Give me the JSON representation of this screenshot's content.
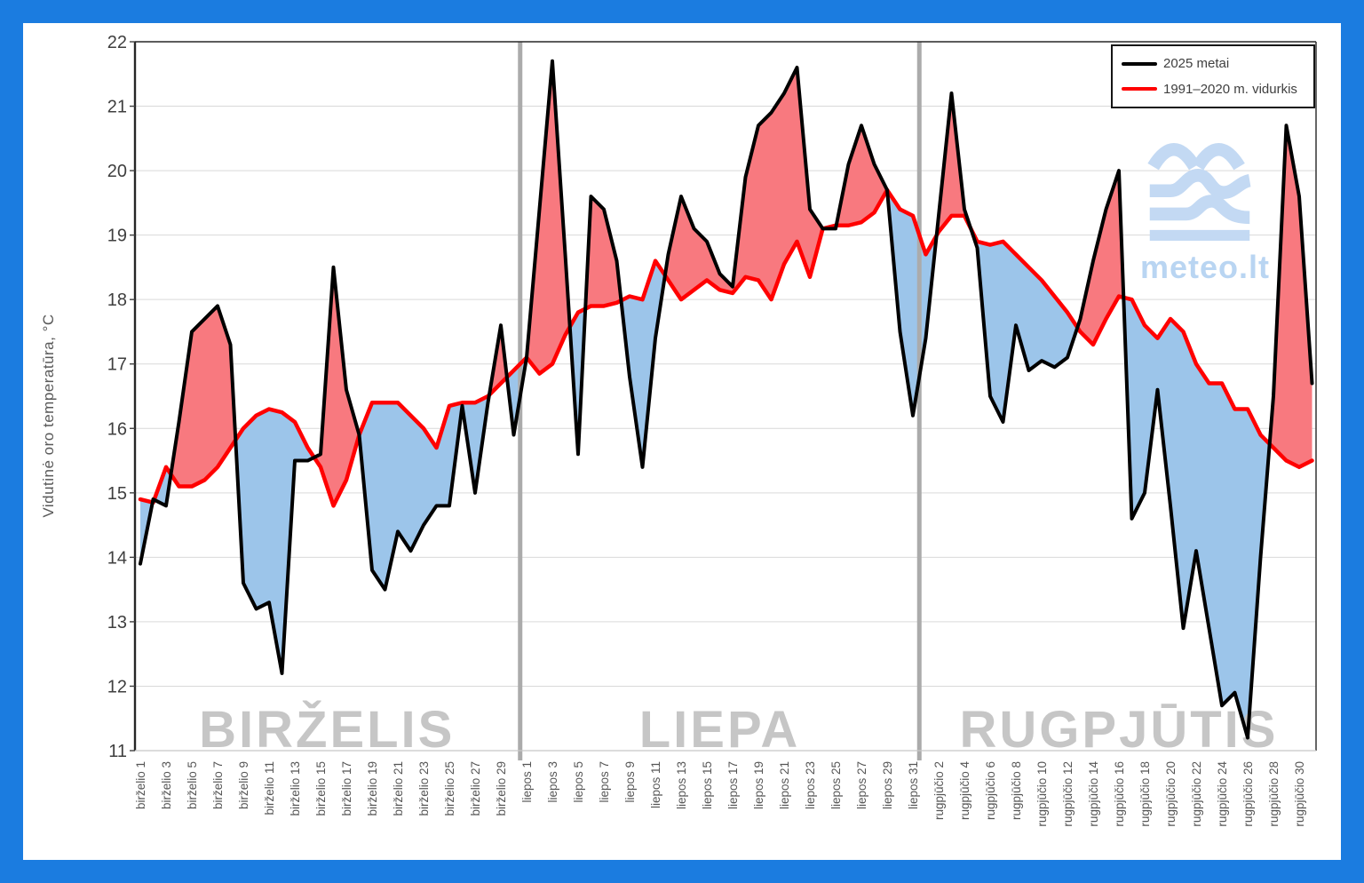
{
  "legend": {
    "items": [
      {
        "label": "2025 metai",
        "color": "#000000"
      },
      {
        "label": "1991–2020 m. vidurkis",
        "color": "#ff0000"
      }
    ]
  },
  "logo": {
    "text": "meteo.lt"
  },
  "months": [
    {
      "label": "BIRŽELIS",
      "start": 0,
      "end": 29
    },
    {
      "label": "LIEPA",
      "start": 30,
      "end": 60
    },
    {
      "label": "RUGPJŪTIS",
      "start": 61,
      "end": 91
    }
  ],
  "x_axis": {
    "ticks": [
      {
        "i": 0,
        "label": "birželio 1"
      },
      {
        "i": 2,
        "label": "birželio 3"
      },
      {
        "i": 4,
        "label": "birželio 5"
      },
      {
        "i": 6,
        "label": "birželio 7"
      },
      {
        "i": 8,
        "label": "birželio 9"
      },
      {
        "i": 10,
        "label": "birželio 11"
      },
      {
        "i": 12,
        "label": "birželio 13"
      },
      {
        "i": 14,
        "label": "birželio 15"
      },
      {
        "i": 16,
        "label": "birželio 17"
      },
      {
        "i": 18,
        "label": "birželio 19"
      },
      {
        "i": 20,
        "label": "birželio 21"
      },
      {
        "i": 22,
        "label": "birželio 23"
      },
      {
        "i": 24,
        "label": "birželio 25"
      },
      {
        "i": 26,
        "label": "birželio 27"
      },
      {
        "i": 28,
        "label": "birželio 29"
      },
      {
        "i": 30,
        "label": "liepos 1"
      },
      {
        "i": 32,
        "label": "liepos 3"
      },
      {
        "i": 34,
        "label": "liepos 5"
      },
      {
        "i": 36,
        "label": "liepos 7"
      },
      {
        "i": 38,
        "label": "liepos 9"
      },
      {
        "i": 40,
        "label": "liepos 11"
      },
      {
        "i": 42,
        "label": "liepos 13"
      },
      {
        "i": 44,
        "label": "liepos 15"
      },
      {
        "i": 46,
        "label": "liepos 17"
      },
      {
        "i": 48,
        "label": "liepos 19"
      },
      {
        "i": 50,
        "label": "liepos 21"
      },
      {
        "i": 52,
        "label": "liepos 23"
      },
      {
        "i": 54,
        "label": "liepos 25"
      },
      {
        "i": 56,
        "label": "liepos 27"
      },
      {
        "i": 58,
        "label": "liepos 29"
      },
      {
        "i": 60,
        "label": "liepos 31"
      },
      {
        "i": 62,
        "label": "rugpjūčio 2"
      },
      {
        "i": 64,
        "label": "rugpjūčio 4"
      },
      {
        "i": 66,
        "label": "rugpjūčio 6"
      },
      {
        "i": 68,
        "label": "rugpjūčio 8"
      },
      {
        "i": 70,
        "label": "rugpjūčio 10"
      },
      {
        "i": 72,
        "label": "rugpjūčio 12"
      },
      {
        "i": 74,
        "label": "rugpjūčio 14"
      },
      {
        "i": 76,
        "label": "rugpjūčio 16"
      },
      {
        "i": 78,
        "label": "rugpjūčio 18"
      },
      {
        "i": 80,
        "label": "rugpjūčio 20"
      },
      {
        "i": 82,
        "label": "rugpjūčio 22"
      },
      {
        "i": 84,
        "label": "rugpjūčio 24"
      },
      {
        "i": 86,
        "label": "rugpjūčio 26"
      },
      {
        "i": 88,
        "label": "rugpjūčio 28"
      },
      {
        "i": 90,
        "label": "rugpjūčio 30"
      }
    ]
  },
  "chart_data": {
    "type": "line",
    "title": "",
    "xlabel": "",
    "ylabel": "Vidutinė oro temperatūra, °C",
    "ylim": [
      11,
      22
    ],
    "y_ticks": [
      11,
      12,
      13,
      14,
      15,
      16,
      17,
      18,
      19,
      20,
      21,
      22
    ],
    "grid": "horizontal",
    "legend_position": "top-right",
    "series": [
      {
        "name": "2025 metai",
        "color": "#000000",
        "values": [
          13.9,
          14.9,
          14.8,
          16.1,
          17.5,
          17.7,
          17.9,
          17.3,
          13.6,
          13.2,
          13.3,
          12.2,
          15.5,
          15.5,
          15.6,
          18.5,
          16.6,
          15.9,
          13.8,
          13.5,
          14.4,
          14.1,
          14.5,
          14.8,
          14.8,
          16.35,
          15.0,
          16.4,
          17.6,
          15.9,
          17.1,
          19.4,
          21.7,
          18.7,
          15.6,
          19.6,
          19.4,
          18.6,
          16.8,
          15.4,
          17.4,
          18.7,
          19.6,
          19.1,
          18.9,
          18.4,
          18.2,
          19.9,
          20.7,
          20.9,
          21.2,
          21.6,
          19.4,
          19.1,
          19.1,
          20.1,
          20.7,
          20.1,
          19.7,
          17.5,
          16.2,
          17.4,
          19.3,
          21.2,
          19.4,
          18.8,
          16.5,
          16.1,
          17.6,
          16.9,
          17.05,
          16.95,
          17.1,
          17.7,
          18.6,
          19.4,
          20.0,
          14.6,
          15.0,
          16.6,
          14.8,
          12.9,
          14.1,
          12.9,
          11.7,
          11.9,
          11.2,
          14.0,
          16.5,
          20.7,
          19.6,
          16.7
        ]
      },
      {
        "name": "1991–2020 m. vidurkis",
        "color": "#ff0000",
        "values": [
          14.9,
          14.85,
          15.4,
          15.1,
          15.1,
          15.2,
          15.4,
          15.7,
          16.0,
          16.2,
          16.3,
          16.25,
          16.1,
          15.7,
          15.4,
          14.8,
          15.2,
          15.9,
          16.4,
          16.4,
          16.4,
          16.2,
          16.0,
          15.7,
          16.35,
          16.4,
          16.4,
          16.5,
          16.7,
          16.9,
          17.1,
          16.85,
          17.0,
          17.45,
          17.8,
          17.9,
          17.9,
          17.95,
          18.05,
          18.0,
          18.6,
          18.3,
          18.0,
          18.15,
          18.3,
          18.15,
          18.1,
          18.35,
          18.3,
          18.0,
          18.55,
          18.9,
          18.35,
          19.1,
          19.15,
          19.15,
          19.2,
          19.35,
          19.7,
          19.4,
          19.3,
          18.7,
          19.05,
          19.3,
          19.3,
          18.9,
          18.85,
          18.9,
          18.7,
          18.5,
          18.3,
          18.05,
          17.8,
          17.5,
          17.3,
          17.7,
          18.05,
          18.0,
          17.6,
          17.4,
          17.7,
          17.5,
          17.0,
          16.7,
          16.7,
          16.3,
          16.3,
          15.9,
          15.7,
          15.5,
          15.4,
          15.5
        ]
      }
    ],
    "fill_between": {
      "above_color": "#f8797f",
      "below_color": "#9cc5ea"
    },
    "colors": {
      "frame": "#1b7ce0",
      "grid": "#d9d9d9",
      "plot_border": "#262626",
      "separator": "#ababab",
      "month_label": "#c6c6c6",
      "y_tick_text": "#3f3f3f",
      "x_tick_text": "#565656",
      "logo_blue": "#c3d9f3"
    }
  }
}
